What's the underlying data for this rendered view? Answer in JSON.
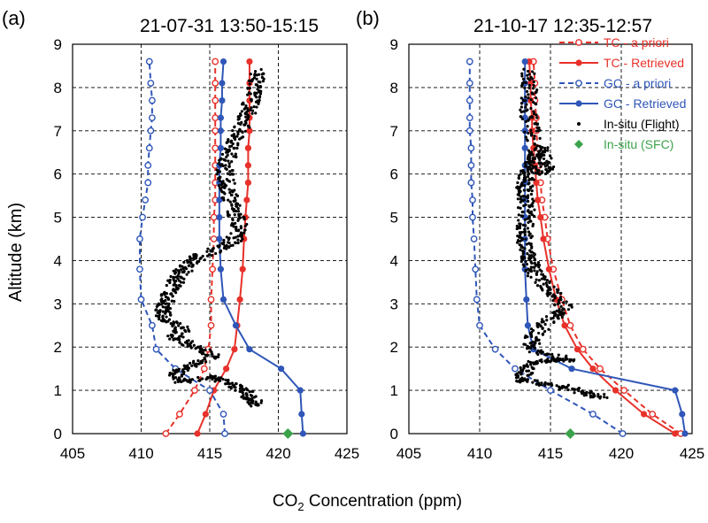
{
  "figure": {
    "ylabel": "Altitude  (km)",
    "xlabel_main": "CO",
    "xlabel_sub": "2",
    "xlabel_rest": " Concentration (ppm)"
  },
  "colors": {
    "tc": "#e8312a",
    "gc": "#2f56b8",
    "insitu_flight": "#000000",
    "insitu_sfc": "#3aa24a"
  },
  "chart_data": [
    {
      "type": "line",
      "panel_label": "(a)",
      "title": "21-07-31  13:50-15:15",
      "xlim": [
        405,
        425
      ],
      "ylim": [
        0,
        9
      ],
      "xticks": [
        405,
        410,
        415,
        420,
        425
      ],
      "yticks": [
        0,
        1,
        2,
        3,
        4,
        5,
        6,
        7,
        8,
        9
      ],
      "grid": true,
      "series": [
        {
          "name": "TC - a priori",
          "style": "dashed-open",
          "color": "#e8312a",
          "x": [
            411.8,
            412.8,
            413.9,
            414.6,
            414.9,
            415.1,
            415.1,
            415.2,
            415.3,
            415.3,
            415.4,
            415.4,
            415.4,
            415.4,
            415.4,
            415.4,
            415.4,
            415.4,
            415.4
          ],
          "y": [
            0,
            0.45,
            1.0,
            1.5,
            1.95,
            2.5,
            3.1,
            3.8,
            4.5,
            5.0,
            5.4,
            5.8,
            6.2,
            6.6,
            7.0,
            7.3,
            7.7,
            8.1,
            8.6
          ]
        },
        {
          "name": "TC - Retrieved",
          "style": "solid-filled",
          "color": "#e8312a",
          "x": [
            414.1,
            414.7,
            415.3,
            416.2,
            416.8,
            417.0,
            417.2,
            417.4,
            417.5,
            417.6,
            417.7,
            417.8,
            417.8,
            417.8,
            417.9,
            417.9,
            417.9,
            417.9,
            417.9
          ],
          "y": [
            0,
            0.45,
            1.0,
            1.5,
            1.95,
            2.5,
            3.1,
            3.8,
            4.5,
            5.0,
            5.4,
            5.8,
            6.2,
            6.6,
            7.0,
            7.3,
            7.7,
            8.1,
            8.6
          ]
        },
        {
          "name": "GC - a priori",
          "style": "dashed-open",
          "color": "#2f56b8",
          "x": [
            416.1,
            416.0,
            415.0,
            412.5,
            411.1,
            410.8,
            410.0,
            409.9,
            409.9,
            410.1,
            410.3,
            410.5,
            410.5,
            410.6,
            410.7,
            410.8,
            410.8,
            410.7,
            410.6
          ],
          "y": [
            0,
            0.45,
            1.0,
            1.5,
            1.95,
            2.5,
            3.1,
            3.8,
            4.5,
            5.0,
            5.4,
            5.8,
            6.2,
            6.6,
            7.0,
            7.3,
            7.7,
            8.1,
            8.6
          ]
        },
        {
          "name": "GC - Retrieved",
          "style": "solid-filled",
          "color": "#2f56b8",
          "x": [
            421.8,
            421.7,
            421.6,
            420.2,
            417.9,
            416.9,
            416.0,
            415.8,
            415.7,
            415.7,
            415.7,
            415.7,
            415.7,
            415.8,
            415.8,
            415.8,
            415.9,
            415.9,
            416.0
          ],
          "y": [
            0,
            0.45,
            1.0,
            1.5,
            1.95,
            2.5,
            3.1,
            3.8,
            4.5,
            5.0,
            5.4,
            5.8,
            6.2,
            6.6,
            7.0,
            7.3,
            7.7,
            8.1,
            8.6
          ]
        },
        {
          "name": "In-situ (Flight)",
          "style": "dots",
          "color": "#000000",
          "x": [
            418.5,
            418.0,
            417.5,
            416.5,
            415.0,
            413.0,
            412.5,
            413.8,
            415.5,
            414.0,
            412.5,
            413.0,
            412.0,
            411.5,
            411.7,
            412.0,
            412.5,
            412.8,
            413.5,
            414.2,
            416.0,
            416.8,
            417.2,
            416.8,
            416.5,
            416.3,
            416.1,
            416.2,
            416.6,
            416.9,
            417.5,
            417.8,
            418.2,
            418.4,
            418.5
          ],
          "y": [
            0.65,
            0.8,
            1.0,
            1.2,
            1.3,
            1.2,
            1.4,
            1.6,
            1.8,
            2.0,
            2.2,
            2.4,
            2.6,
            2.8,
            3.0,
            3.2,
            3.5,
            3.7,
            3.9,
            4.1,
            4.3,
            4.5,
            4.8,
            5.1,
            5.4,
            5.7,
            6.0,
            6.3,
            6.6,
            6.9,
            7.2,
            7.5,
            7.8,
            8.1,
            8.4
          ]
        },
        {
          "name": "In-situ (SFC)",
          "style": "diamond",
          "color": "#3aa24a",
          "x": [
            420.7
          ],
          "y": [
            0
          ]
        }
      ]
    },
    {
      "type": "line",
      "panel_label": "(b)",
      "title": "21-10-17  12:35-12:57",
      "xlim": [
        405,
        425
      ],
      "ylim": [
        0,
        9
      ],
      "xticks": [
        405,
        410,
        415,
        420,
        425
      ],
      "yticks": [
        0,
        1,
        2,
        3,
        4,
        5,
        6,
        7,
        8,
        9
      ],
      "grid": true,
      "legend": "top-right",
      "series": [
        {
          "name": "TC - a priori",
          "style": "dashed-open",
          "color": "#e8312a",
          "x": [
            424.2,
            422.2,
            420.2,
            418.5,
            417.3,
            416.4,
            415.8,
            415.2,
            414.8,
            414.6,
            414.4,
            414.3,
            414.2,
            414.1,
            414.0,
            414.0,
            413.9,
            413.9,
            413.8
          ],
          "y": [
            0,
            0.45,
            1.0,
            1.5,
            1.95,
            2.5,
            3.1,
            3.8,
            4.5,
            5.0,
            5.4,
            5.8,
            6.2,
            6.6,
            7.0,
            7.3,
            7.7,
            8.1,
            8.6
          ]
        },
        {
          "name": "TC - Retrieved",
          "style": "solid-filled",
          "color": "#e8312a",
          "x": [
            423.8,
            421.6,
            419.6,
            418.0,
            416.9,
            416.0,
            415.4,
            414.9,
            414.5,
            414.3,
            414.1,
            414.0,
            413.9,
            413.8,
            413.7,
            413.7,
            413.6,
            413.6,
            413.5
          ],
          "y": [
            0,
            0.45,
            1.0,
            1.5,
            1.95,
            2.5,
            3.1,
            3.8,
            4.5,
            5.0,
            5.4,
            5.8,
            6.2,
            6.6,
            7.0,
            7.3,
            7.7,
            8.1,
            8.6
          ]
        },
        {
          "name": "GC - a priori",
          "style": "dashed-open",
          "color": "#2f56b8",
          "x": [
            420.1,
            418.0,
            415.0,
            412.5,
            411.1,
            410.0,
            409.8,
            409.7,
            409.6,
            409.5,
            409.5,
            409.4,
            409.4,
            409.4,
            409.3,
            409.3,
            409.3,
            409.3,
            409.3
          ],
          "y": [
            0,
            0.45,
            1.0,
            1.5,
            1.95,
            2.5,
            3.1,
            3.8,
            4.5,
            5.0,
            5.4,
            5.8,
            6.2,
            6.6,
            7.0,
            7.3,
            7.7,
            8.1,
            8.6
          ]
        },
        {
          "name": "GC - Retrieved",
          "style": "solid-filled",
          "color": "#2f56b8",
          "x": [
            424.5,
            424.3,
            423.8,
            416.5,
            413.8,
            413.4,
            413.3,
            413.2,
            413.2,
            413.2,
            413.2,
            413.2,
            413.2,
            413.2,
            413.2,
            413.2,
            413.2,
            413.2,
            413.2
          ],
          "y": [
            0,
            0.45,
            1.0,
            1.5,
            1.95,
            2.5,
            3.1,
            3.8,
            4.5,
            5.0,
            5.4,
            5.8,
            6.2,
            6.6,
            7.0,
            7.3,
            7.7,
            8.1,
            8.6
          ]
        },
        {
          "name": "In-situ (Flight)",
          "style": "dots",
          "color": "#000000",
          "x": [
            418.6,
            417.5,
            415.5,
            413.2,
            413.1,
            413.4,
            415.0,
            416.5,
            414.0,
            413.5,
            414.2,
            415.2,
            416.0,
            415.5,
            414.6,
            413.9,
            413.6,
            413.4,
            413.2,
            413.1,
            413.3,
            413.3,
            413.1,
            413.2,
            413.4,
            413.6,
            413.8,
            414.5,
            414.8,
            414.3,
            413.8,
            413.5,
            413.4,
            413.5,
            413.6
          ],
          "y": [
            0.85,
            0.95,
            1.1,
            1.2,
            1.4,
            1.6,
            1.7,
            1.7,
            1.9,
            2.1,
            2.4,
            2.7,
            2.9,
            3.2,
            3.4,
            3.7,
            3.9,
            4.1,
            4.4,
            4.7,
            5.0,
            5.3,
            5.6,
            5.8,
            6.0,
            6.2,
            6.4,
            6.6,
            6.2,
            6.0,
            6.8,
            7.2,
            7.6,
            8.0,
            8.4
          ]
        },
        {
          "name": "In-situ (SFC)",
          "style": "diamond",
          "color": "#3aa24a",
          "x": [
            416.4
          ],
          "y": [
            0
          ]
        }
      ]
    }
  ]
}
